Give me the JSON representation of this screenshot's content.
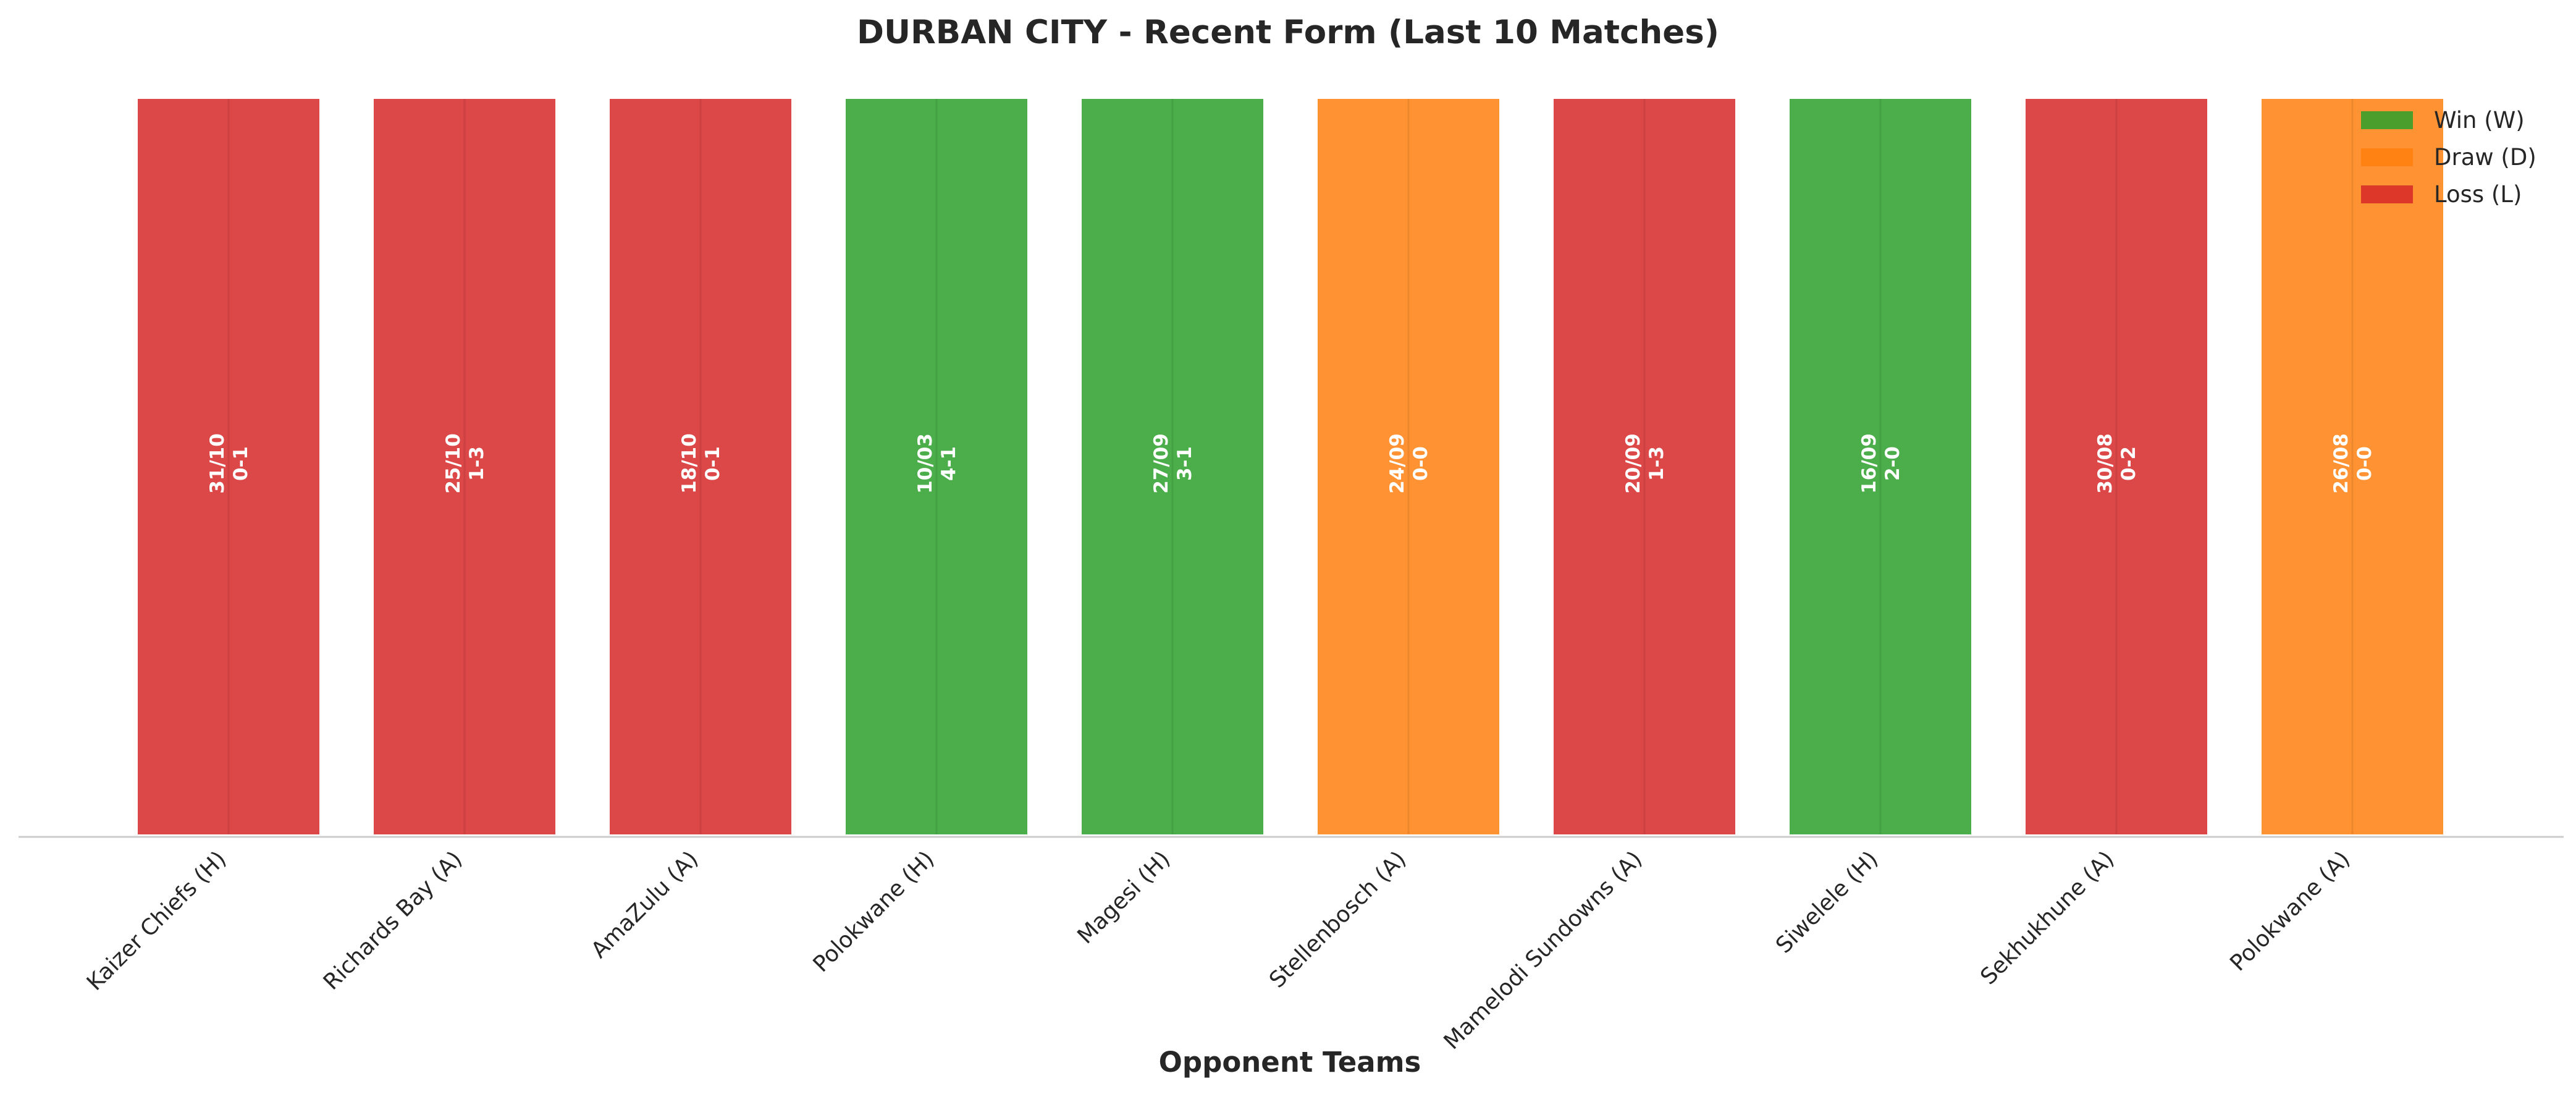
{
  "chart_data": {
    "type": "bar",
    "title": "DURBAN CITY - Recent Form (Last 10 Matches)",
    "xlabel": "Opponent Teams",
    "ylabel": "",
    "grid": false,
    "legend_position": "top-right",
    "categories": [
      "Kaizer Chiefs (H)",
      "Richards Bay (A)",
      "AmaZulu (A)",
      "Polokwane (H)",
      "Magesi (H)",
      "Stellenbosch (A)",
      "Mamelodi Sundowns (A)",
      "Siwelele (H)",
      "Sekhukhune (A)",
      "Polokwane (A)"
    ],
    "values": [
      1,
      1,
      1,
      1,
      1,
      1,
      1,
      1,
      1,
      1
    ],
    "results": [
      "L",
      "L",
      "L",
      "W",
      "W",
      "D",
      "L",
      "W",
      "L",
      "D"
    ],
    "dates": [
      "31/10",
      "25/10",
      "18/10",
      "10/03",
      "27/09",
      "24/09",
      "20/09",
      "16/09",
      "30/08",
      "26/08"
    ],
    "scores": [
      "0-1",
      "1-3",
      "0-1",
      "4-1",
      "3-1",
      "0-0",
      "1-3",
      "2-0",
      "0-2",
      "0-0"
    ],
    "legend": [
      {
        "key": "W",
        "label": "Win (W)",
        "color": "#2ca02c"
      },
      {
        "key": "D",
        "label": "Draw (D)",
        "color": "#ff7f0e"
      },
      {
        "key": "L",
        "label": "Loss (L)",
        "color": "#d62728"
      }
    ]
  }
}
